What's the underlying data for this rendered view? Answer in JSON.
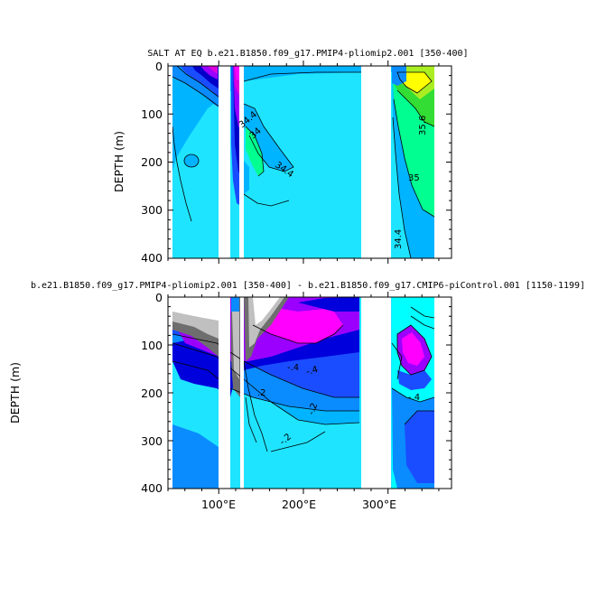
{
  "chart_data": [
    {
      "type": "contour",
      "title": "SALT AT EQ b.e21.B1850.f09_g17.PMIP4-pliomip2.001 [350-400]",
      "ylabel": "DEPTH (m)",
      "xlabel": "",
      "xlim": [
        40,
        375
      ],
      "ylim": [
        400,
        0
      ],
      "yticks": [
        "0",
        "100",
        "200",
        "300",
        "400"
      ],
      "xticks": [],
      "contour_labels": [
        "34.4",
        "34",
        "34.4",
        "35",
        "35.6",
        "34.4"
      ],
      "fill_colors": [
        "#1fe4ff",
        "#00b4ff",
        "#0a8cff",
        "#1a4dff",
        "#0000c8",
        "#9b00ff",
        "#dc00dc",
        "#00ff90",
        "#33dd33",
        "#aaee22",
        "#ffff00"
      ],
      "land_gaps_lon": [
        [
          100,
          105
        ],
        [
          125,
          130
        ],
        [
          278,
          318
        ]
      ]
    },
    {
      "type": "contour",
      "title": "b.e21.B1850.f09_g17.PMIP4-pliomip2.001 [350-400] - b.e21.B1850.f09_g17.CMIP6-piControl.001 [1150-1199]",
      "ylabel": "DEPTH (m)",
      "xlabel": "",
      "xlim": [
        40,
        375
      ],
      "ylim": [
        400,
        0
      ],
      "yticks": [
        "0",
        "100",
        "200",
        "300",
        "400"
      ],
      "xticks": [
        "100°E",
        "200°E",
        "300°E"
      ],
      "contour_labels": [
        "-.4",
        "-.4",
        ".2",
        "-.2",
        "-.2",
        "-.4"
      ],
      "fill_colors": [
        "#ffffff",
        "#c0c0c0",
        "#6e6e6e",
        "#9b00ff",
        "#ff00ff",
        "#0000dc",
        "#1a4dff",
        "#0a8cff",
        "#00b4ff",
        "#1fe4ff",
        "#00ffff",
        "#ff0000"
      ],
      "land_gaps_lon": [
        [
          100,
          105
        ],
        [
          125,
          130
        ],
        [
          278,
          318
        ]
      ]
    }
  ]
}
